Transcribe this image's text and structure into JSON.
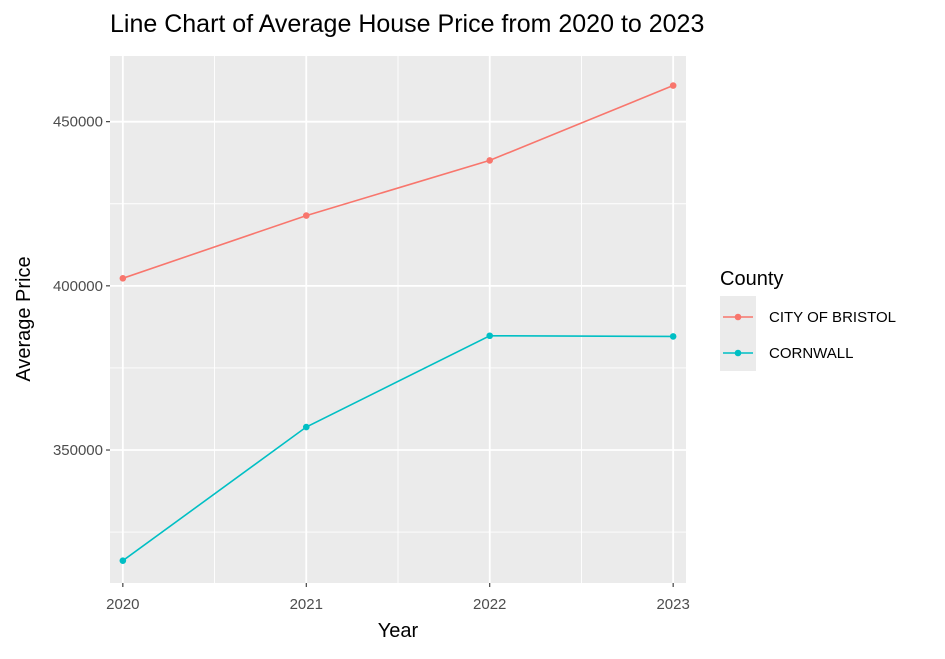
{
  "chart_data": {
    "type": "line",
    "title": "Line Chart of Average House Price from 2020 to 2023",
    "xlabel": "Year",
    "ylabel": "Average Price",
    "x": [
      2020,
      2021,
      2022,
      2023
    ],
    "x_tick_labels": [
      "2020",
      "2021",
      "2022",
      "2023"
    ],
    "y_ticks": [
      350000,
      400000,
      450000
    ],
    "y_tick_labels": [
      "350000",
      "400000",
      "450000"
    ],
    "xlim": [
      2019.93,
      2023.07
    ],
    "ylim": [
      309500,
      470000
    ],
    "grid": true,
    "legend": {
      "title": "County",
      "position": "right"
    },
    "series": [
      {
        "name": "CITY OF BRISTOL",
        "color": "#F8766D",
        "values": [
          402300,
          421400,
          438200,
          461000
        ]
      },
      {
        "name": "CORNWALL",
        "color": "#00BFC4",
        "values": [
          316300,
          357000,
          384800,
          384600
        ]
      }
    ],
    "panel_background": "#EBEBEB",
    "grid_color": "#FFFFFF"
  }
}
